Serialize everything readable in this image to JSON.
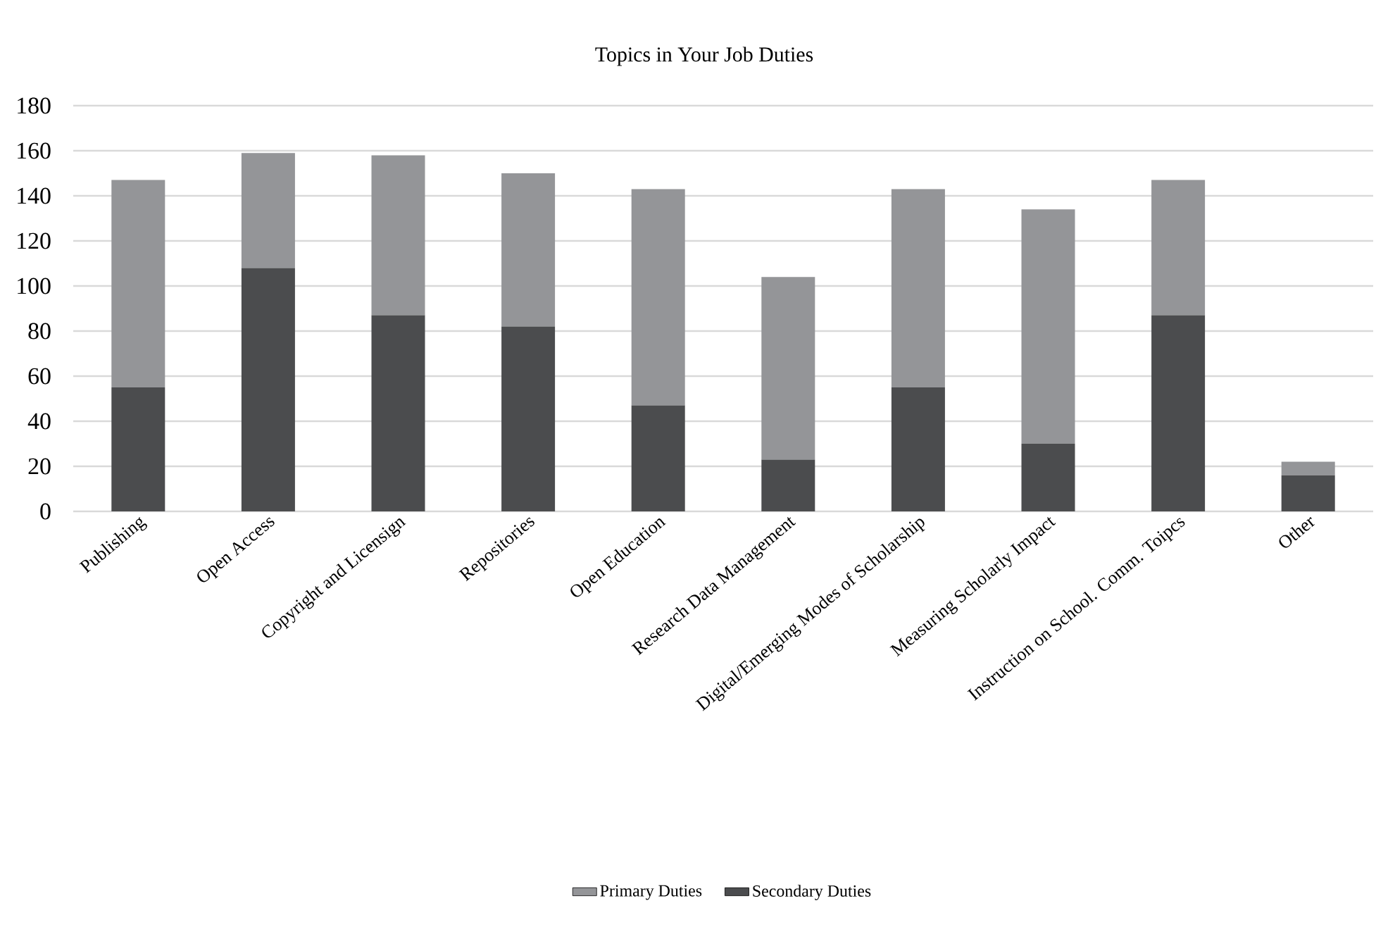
{
  "chart_data": {
    "type": "bar",
    "title": "Topics in Your Job Duties",
    "stacked": true,
    "categories": [
      "Publishing",
      "Open Access",
      "Copyright and Licensign",
      "Repositories",
      "Open Education",
      "Research Data Management",
      "Digital/Emerging Modes of Scholarship",
      "Measuring Scholarly Impact",
      "Instruction on School. Comm. Toipcs",
      "Other"
    ],
    "series": [
      {
        "name": "Secondary Duties",
        "color": "#4b4c4e",
        "values": [
          55,
          108,
          87,
          82,
          47,
          23,
          55,
          30,
          87,
          16
        ]
      },
      {
        "name": "Primary Duties",
        "color": "#949598",
        "values": [
          92,
          51,
          71,
          68,
          96,
          81,
          88,
          104,
          60,
          6
        ]
      }
    ],
    "ylim": [
      0,
      180
    ],
    "yticks": [
      0,
      20,
      40,
      60,
      80,
      100,
      120,
      140,
      160,
      180
    ],
    "grid": "y",
    "legend": "bottom"
  }
}
